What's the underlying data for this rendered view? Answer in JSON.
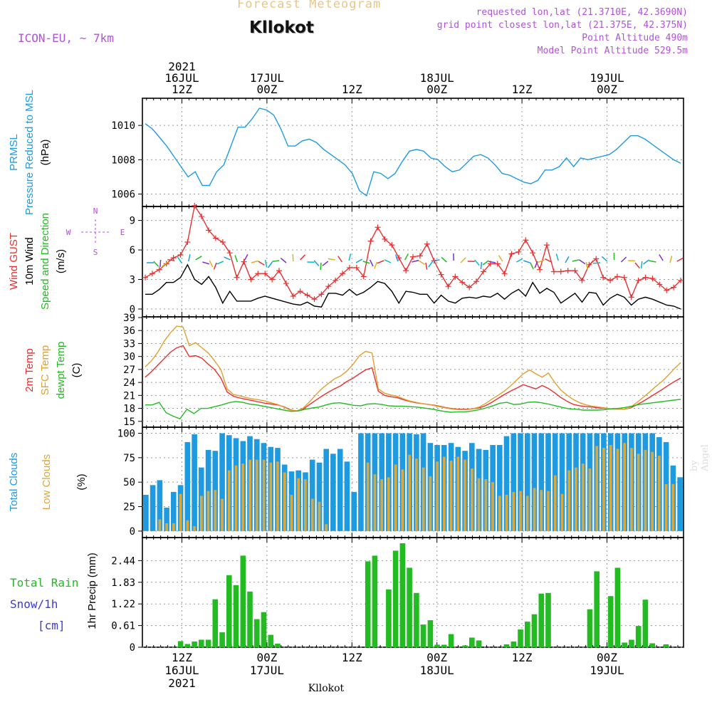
{
  "header": {
    "faded_title": "Forecast Meteogram",
    "station": "Kllokot",
    "model": "ICON-EU, ~ 7km",
    "requested": "requested lon,lat (21.3710E, 42.3690N)",
    "grid_point": "grid point closest lon,lat (21.375E, 42.375N)",
    "point_alt": "Point Altitude 490m",
    "model_alt": "Model Point Altitude 529.5m",
    "credit": "by Angel",
    "footer_station": "Kllokot"
  },
  "time_axis": {
    "hours_total": 78,
    "major_ticks": [
      {
        "h": 0,
        "top": [
          "2021",
          "16JUL",
          "12Z"
        ],
        "bottom": [
          "12Z",
          "16JUL",
          "2021"
        ]
      },
      {
        "h": 12,
        "top": [
          "17JUL",
          "00Z"
        ],
        "bottom": [
          "00Z",
          "17JUL"
        ]
      },
      {
        "h": 24,
        "top": [
          "12Z"
        ],
        "bottom": [
          "12Z"
        ]
      },
      {
        "h": 36,
        "top": [
          "18JUL",
          "00Z"
        ],
        "bottom": [
          "00Z",
          "18JUL"
        ]
      },
      {
        "h": 48,
        "top": [
          "12Z"
        ],
        "bottom": [
          "12Z"
        ]
      },
      {
        "h": 60,
        "top": [
          "19JUL",
          "00Z"
        ],
        "bottom": [
          "00Z",
          "19JUL"
        ]
      }
    ]
  },
  "labels": {
    "p1": [
      {
        "t": "PRMSL",
        "c": "#1e9be0"
      },
      {
        "t": "Pressure Reduced to MSL",
        "c": "#1e9be0"
      },
      {
        "t": "(hPa)",
        "c": "#000"
      }
    ],
    "p2": [
      {
        "t": "Wind GUST",
        "c": "#e83030"
      },
      {
        "t": "10m Wind",
        "c": "#000"
      },
      {
        "t": "Speed and Direction",
        "c": "#22bb22"
      },
      {
        "t": "(m/s)",
        "c": "#000"
      }
    ],
    "compass": {
      "n": "N",
      "s": "S",
      "w": "W",
      "e": "E"
    },
    "p3": [
      {
        "t": "2m Temp",
        "c": "#e83030"
      },
      {
        "t": "SFC Temp",
        "c": "#e0a030"
      },
      {
        "t": "dewpt Temp",
        "c": "#22bb22"
      },
      {
        "t": "(C)",
        "c": "#000"
      }
    ],
    "p4a": {
      "t": "Total Clouds",
      "c": "#1e9be0"
    },
    "p4b": {
      "t": "Low Clouds",
      "c": "#d9a840"
    },
    "p4u": "(%)",
    "p5": [
      {
        "t": "Total  Rain",
        "c": "#22bb22"
      },
      {
        "t": "Snow/1h",
        "c": "#3a3ad8"
      },
      {
        "t": "[cm]",
        "c": "#3a3ad8"
      }
    ],
    "p5y": "1hr Precip (mm)"
  },
  "chart_data": [
    {
      "id": "pressure",
      "type": "line",
      "ylabel": "hPa",
      "ylim": [
        1005.4,
        1011.5
      ],
      "yticks": [
        1006,
        1008,
        1010
      ],
      "color": "#1e9be0",
      "series": [
        {
          "name": "PRMSL",
          "values": [
            1010.1,
            1009.8,
            1009.3,
            1008.8,
            1008.2,
            1007.6,
            1007.0,
            1007.3,
            1006.5,
            1006.5,
            1007.3,
            1007.7,
            1008.8,
            1009.9,
            1009.9,
            1010.4,
            1011.0,
            1010.9,
            1010.6,
            1009.8,
            1008.8,
            1008.8,
            1009.1,
            1009.2,
            1009.0,
            1008.6,
            1008.3,
            1008.0,
            1007.7,
            1007.2,
            1006.2,
            1005.9,
            1007.3,
            1007.2,
            1006.9,
            1007.2,
            1007.9,
            1008.5,
            1008.6,
            1008.5,
            1008.1,
            1008.0,
            1007.6,
            1007.3,
            1007.4,
            1007.8,
            1008.2,
            1008.3,
            1008.1,
            1007.7,
            1007.2,
            1007.1,
            1006.9,
            1006.7,
            1006.6,
            1006.8,
            1007.4,
            1007.4,
            1007.6,
            1008.1,
            1007.6,
            1008.1,
            1008.0,
            1008.1,
            1008.2,
            1008.3,
            1008.6,
            1009.0,
            1009.4,
            1009.4,
            1009.2,
            1008.9,
            1008.6,
            1008.3,
            1008.0,
            1007.8
          ]
        }
      ]
    },
    {
      "id": "wind",
      "type": "line",
      "ylabel": "m/s",
      "ylim": [
        0,
        10.2
      ],
      "yticks": [
        0,
        3,
        6,
        9
      ],
      "series": [
        {
          "name": "Wind GUST",
          "color": "#e83030",
          "values": [
            3.2,
            3.6,
            4.0,
            4.6,
            5.2,
            5.5,
            6.8,
            10.5,
            9.4,
            8.0,
            7.2,
            6.8,
            5.7,
            3.2,
            4.8,
            3.0,
            3.6,
            3.6,
            3.0,
            3.9,
            2.6,
            1.3,
            1.8,
            1.4,
            1.0,
            1.5,
            2.3,
            2.9,
            3.6,
            4.2,
            4.2,
            3.3,
            6.9,
            8.3,
            7.1,
            6.5,
            5.2,
            3.9,
            5.3,
            5.4,
            6.6,
            4.9,
            3.5,
            2.3,
            3.3,
            2.7,
            2.2,
            2.8,
            3.8,
            4.6,
            4.6,
            3.6,
            5.6,
            5.8,
            7.0,
            5.7,
            4.0,
            6.5,
            3.8,
            3.8,
            3.9,
            3.9,
            2.9,
            4.5,
            5.1,
            3.2,
            2.9,
            3.3,
            3.2,
            1.2,
            2.9,
            3.2,
            3.1,
            2.5,
            1.9,
            2.2,
            2.9
          ]
        },
        {
          "name": "10m Wind",
          "color": "#000000",
          "values": [
            1.5,
            1.5,
            2.0,
            2.7,
            2.7,
            3.2,
            4.5,
            3.0,
            2.5,
            3.3,
            2.2,
            0.6,
            1.8,
            0.8,
            0.8,
            0.8,
            1.1,
            1.3,
            1.1,
            0.9,
            0.7,
            0.5,
            0.4,
            0.7,
            0.3,
            0.2,
            1.6,
            1.6,
            1.4,
            2.0,
            1.4,
            1.7,
            2.2,
            2.8,
            2.6,
            1.8,
            0.6,
            1.8,
            1.7,
            1.5,
            1.5,
            0.6,
            1.4,
            0.8,
            0.6,
            1.1,
            1.2,
            1.1,
            1.3,
            1.2,
            1.6,
            1.0,
            1.6,
            2.0,
            1.3,
            2.7,
            1.6,
            2.1,
            1.7,
            0.6,
            1.1,
            1.6,
            0.7,
            1.7,
            1.6,
            0.4,
            1.1,
            1.5,
            1.2,
            0.4,
            1.0,
            1.2,
            1.0,
            0.7,
            0.4,
            0.3,
            0.0
          ]
        }
      ]
    },
    {
      "id": "temperature",
      "type": "line",
      "ylabel": "C",
      "ylim": [
        14.8,
        39.0
      ],
      "yticks": [
        15,
        18,
        21,
        24,
        27,
        30,
        33,
        36,
        39
      ],
      "series": [
        {
          "name": "2m Temp",
          "color": "#e83030",
          "values": [
            25.2,
            26.5,
            28.0,
            29.5,
            31.0,
            32.0,
            32.5,
            30.0,
            30.2,
            29.6,
            28.2,
            27.0,
            25.0,
            21.8,
            20.8,
            20.4,
            20.1,
            19.8,
            19.5,
            19.2,
            19.0,
            18.8,
            18.4,
            17.7,
            17.4,
            17.8,
            18.8,
            19.8,
            20.8,
            21.7,
            22.5,
            23.2,
            24.2,
            25.0,
            26.0,
            26.9,
            27.4,
            22.0,
            21.0,
            20.7,
            20.5,
            20.0,
            19.6,
            19.3,
            19.1,
            18.9,
            18.7,
            18.4,
            18.1,
            17.9,
            17.8,
            17.8,
            17.9,
            18.1,
            18.6,
            19.4,
            20.3,
            21.2,
            22.0,
            22.7,
            23.5,
            23.0,
            22.5,
            23.3,
            22.6,
            21.6,
            20.5,
            19.6,
            18.9,
            18.6,
            18.4,
            18.3,
            18.1,
            18.0,
            17.9,
            17.8,
            17.8,
            18.1,
            18.8,
            19.6,
            20.5,
            21.4,
            22.3,
            23.3,
            24.2,
            25.0
          ]
        },
        {
          "name": "SFC Temp",
          "color": "#e0a030",
          "values": [
            27.6,
            29.0,
            31.0,
            33.5,
            35.5,
            37.0,
            36.8,
            32.5,
            33.2,
            32.0,
            30.8,
            29.0,
            27.0,
            22.5,
            21.2,
            20.9,
            20.5,
            20.2,
            20.0,
            19.7,
            19.3,
            18.9,
            18.3,
            17.6,
            17.4,
            18.0,
            19.4,
            21.0,
            22.5,
            23.7,
            24.8,
            25.5,
            26.6,
            28.2,
            30.2,
            31.2,
            30.8,
            22.5,
            21.5,
            21.1,
            20.8,
            20.2,
            19.7,
            19.4,
            19.1,
            18.9,
            18.6,
            18.3,
            18.0,
            17.8,
            17.7,
            17.7,
            17.9,
            18.3,
            19.1,
            20.1,
            21.0,
            22.0,
            23.2,
            24.6,
            26.0,
            26.9,
            26.0,
            25.2,
            26.2,
            24.0,
            22.2,
            21.0,
            20.0,
            19.3,
            18.8,
            18.5,
            18.3,
            18.1,
            17.9,
            17.8,
            17.8,
            18.2,
            19.3,
            20.5,
            21.7,
            23.0,
            24.2,
            25.6,
            27.2,
            28.6
          ]
        },
        {
          "name": "dewpt Temp",
          "color": "#22bb22",
          "values": [
            18.8,
            18.8,
            19.4,
            17.0,
            16.2,
            15.6,
            17.8,
            16.8,
            18.0,
            18.0,
            18.4,
            18.8,
            19.3,
            19.6,
            19.4,
            19.0,
            18.8,
            18.5,
            18.2,
            17.9,
            17.6,
            17.3,
            17.4,
            17.8,
            18.1,
            18.3,
            18.8,
            19.2,
            19.3,
            19.0,
            18.7,
            18.6,
            19.0,
            19.1,
            18.9,
            18.6,
            18.5,
            18.5,
            18.4,
            18.3,
            18.1,
            17.9,
            17.6,
            17.3,
            17.1,
            17.2,
            17.2,
            17.4,
            17.7,
            18.1,
            18.6,
            19.2,
            19.4,
            18.9,
            19.0,
            19.4,
            19.5,
            19.3,
            19.0,
            18.6,
            18.2,
            17.9,
            17.8,
            17.6,
            17.6,
            17.6,
            17.7,
            17.9,
            18.0,
            18.2,
            18.5,
            18.9,
            19.1,
            19.3,
            19.5,
            19.7,
            19.9,
            20.1
          ]
        }
      ]
    },
    {
      "id": "clouds",
      "type": "bar",
      "ylabel": "%",
      "ylim": [
        -3,
        104
      ],
      "yticks": [
        0,
        25,
        50,
        75,
        100
      ],
      "series": [
        {
          "name": "Total Clouds",
          "color": "#1e9be0",
          "values": [
            37,
            47,
            52,
            24,
            40,
            47,
            91,
            99,
            65,
            83,
            82,
            100,
            98,
            95,
            92,
            97,
            94,
            90,
            86,
            85,
            68,
            61,
            62,
            60,
            73,
            70,
            84,
            79,
            84,
            71,
            40,
            100,
            100,
            100,
            100,
            100,
            100,
            100,
            100,
            99,
            100,
            90,
            88,
            88,
            90,
            86,
            82,
            90,
            84,
            83,
            88,
            88,
            97,
            100,
            100,
            100,
            100,
            100,
            100,
            100,
            100,
            100,
            100,
            100,
            100,
            100,
            100,
            100,
            100,
            100,
            100,
            100,
            100,
            100,
            96,
            91,
            67,
            55
          ]
        },
        {
          "name": "Low Clouds",
          "color": "#d9a840",
          "values": [
            0,
            0,
            12,
            8,
            8,
            38,
            11,
            5,
            36,
            41,
            42,
            33,
            62,
            67,
            69,
            73,
            73,
            73,
            70,
            71,
            60,
            37,
            54,
            53,
            33,
            30,
            7,
            0,
            0,
            0,
            0,
            0,
            70,
            58,
            53,
            55,
            68,
            63,
            78,
            74,
            65,
            56,
            71,
            76,
            72,
            76,
            73,
            64,
            54,
            53,
            50,
            36,
            37,
            40,
            41,
            36,
            44,
            42,
            41,
            57,
            38,
            62,
            65,
            69,
            64,
            87,
            85,
            88,
            84,
            90,
            85,
            79,
            83,
            81,
            77,
            48,
            48,
            0
          ]
        }
      ]
    },
    {
      "id": "precip",
      "type": "bar",
      "ylabel": "1hr Precip (mm)",
      "ylim": [
        0,
        3.05
      ],
      "yticks": [
        0,
        0.61,
        1.22,
        1.83,
        2.44
      ],
      "color": "#22bb22",
      "series": [
        {
          "name": "Total Rain",
          "values": [
            0,
            0,
            0,
            0,
            0,
            0.17,
            0.09,
            0.16,
            0.21,
            0.21,
            1.35,
            0.42,
            2.03,
            1.75,
            2.58,
            1.57,
            0.79,
            0.99,
            0.35,
            0.1,
            0,
            0,
            0,
            0,
            0,
            0,
            0,
            0,
            0,
            0,
            0,
            0,
            2.42,
            2.58,
            0,
            1.63,
            2.72,
            2.93,
            2.24,
            1.53,
            0.64,
            0.76,
            0.07,
            0.07,
            0.37,
            0,
            0.05,
            0.27,
            0.19,
            0,
            0,
            0,
            0.08,
            0.16,
            0.5,
            0.72,
            0.93,
            1.51,
            1.53,
            0,
            0,
            0,
            0,
            0,
            1.07,
            2.14,
            0,
            1.44,
            2.24,
            0.13,
            0.21,
            0.6,
            1.34,
            0.11,
            0,
            0.08,
            0,
            0
          ]
        }
      ]
    }
  ]
}
